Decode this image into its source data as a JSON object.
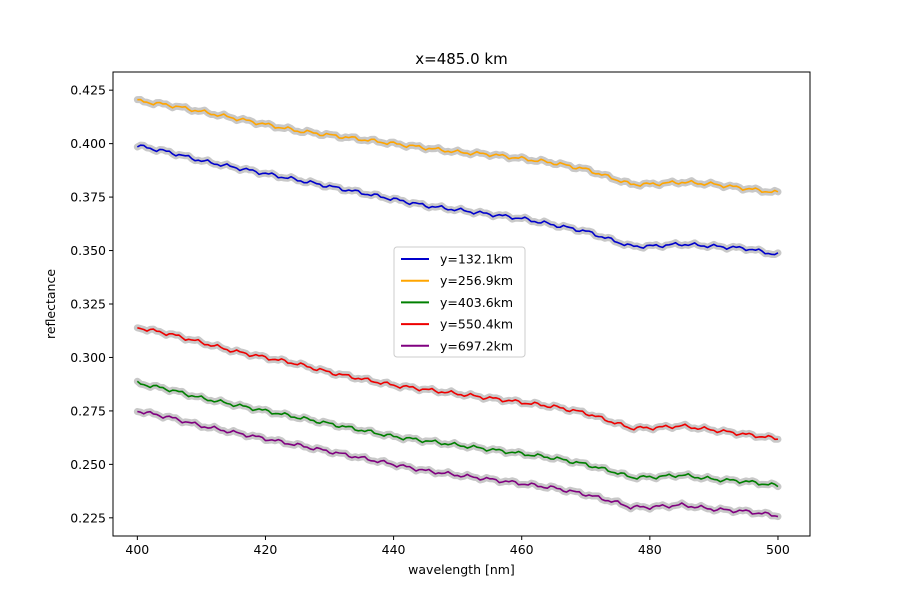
{
  "chart_data": {
    "type": "line",
    "title": "x=485.0 km",
    "xlabel": "wavelength [nm]",
    "ylabel": "reflectance",
    "xlim": [
      396.2,
      505
    ],
    "ylim": [
      0.2165,
      0.4335
    ],
    "xticks": [
      400,
      420,
      440,
      460,
      480,
      500
    ],
    "xtick_labels": [
      "400",
      "420",
      "440",
      "460",
      "480",
      "500"
    ],
    "yticks": [
      0.225,
      0.25,
      0.275,
      0.3,
      0.325,
      0.35,
      0.375,
      0.4,
      0.425
    ],
    "ytick_labels": [
      "0.225",
      "0.250",
      "0.275",
      "0.300",
      "0.325",
      "0.350",
      "0.375",
      "0.400",
      "0.425"
    ],
    "grid": false,
    "legend_position": "center",
    "uncertainty_band_color": "#c8c8c8",
    "series": [
      {
        "name": "y=132.1km",
        "color": "#0000cc",
        "x": [
          400,
          405,
          410,
          415,
          420,
          425,
          430,
          435,
          440,
          445,
          450,
          455,
          460,
          465,
          470,
          475,
          477,
          480,
          485,
          490,
          495,
          500
        ],
        "values": [
          0.399,
          0.396,
          0.392,
          0.389,
          0.386,
          0.383,
          0.38,
          0.377,
          0.374,
          0.371,
          0.369,
          0.367,
          0.365,
          0.362,
          0.359,
          0.354,
          0.352,
          0.352,
          0.353,
          0.352,
          0.351,
          0.348
        ]
      },
      {
        "name": "y=256.9km",
        "color": "#ffa500",
        "x": [
          400,
          405,
          410,
          415,
          420,
          425,
          430,
          435,
          440,
          445,
          450,
          455,
          460,
          465,
          470,
          475,
          477,
          480,
          485,
          490,
          495,
          500
        ],
        "values": [
          0.42,
          0.418,
          0.415,
          0.412,
          0.409,
          0.406,
          0.404,
          0.402,
          0.4,
          0.398,
          0.396,
          0.395,
          0.393,
          0.391,
          0.388,
          0.383,
          0.381,
          0.381,
          0.382,
          0.381,
          0.379,
          0.377
        ]
      },
      {
        "name": "y=403.6km",
        "color": "#008000",
        "x": [
          400,
          405,
          410,
          415,
          420,
          425,
          430,
          435,
          440,
          445,
          450,
          455,
          460,
          465,
          470,
          475,
          477,
          480,
          485,
          490,
          495,
          500
        ],
        "values": [
          0.288,
          0.285,
          0.281,
          0.278,
          0.275,
          0.272,
          0.269,
          0.266,
          0.263,
          0.261,
          0.259,
          0.257,
          0.255,
          0.253,
          0.25,
          0.246,
          0.244,
          0.244,
          0.245,
          0.243,
          0.242,
          0.24
        ]
      },
      {
        "name": "y=550.4km",
        "color": "#ee0000",
        "x": [
          400,
          405,
          410,
          415,
          420,
          425,
          430,
          435,
          440,
          445,
          450,
          455,
          460,
          465,
          470,
          475,
          477,
          480,
          485,
          490,
          495,
          500
        ],
        "values": [
          0.314,
          0.311,
          0.307,
          0.303,
          0.3,
          0.297,
          0.293,
          0.29,
          0.287,
          0.285,
          0.283,
          0.281,
          0.279,
          0.277,
          0.274,
          0.269,
          0.267,
          0.267,
          0.268,
          0.266,
          0.264,
          0.262
        ]
      },
      {
        "name": "y=697.2km",
        "color": "#800080",
        "x": [
          400,
          405,
          410,
          415,
          420,
          425,
          430,
          435,
          440,
          445,
          450,
          455,
          460,
          465,
          470,
          475,
          477,
          480,
          485,
          490,
          495,
          500
        ],
        "values": [
          0.275,
          0.272,
          0.268,
          0.265,
          0.262,
          0.259,
          0.256,
          0.253,
          0.25,
          0.247,
          0.245,
          0.243,
          0.241,
          0.239,
          0.236,
          0.232,
          0.23,
          0.23,
          0.231,
          0.229,
          0.228,
          0.226
        ]
      }
    ]
  }
}
